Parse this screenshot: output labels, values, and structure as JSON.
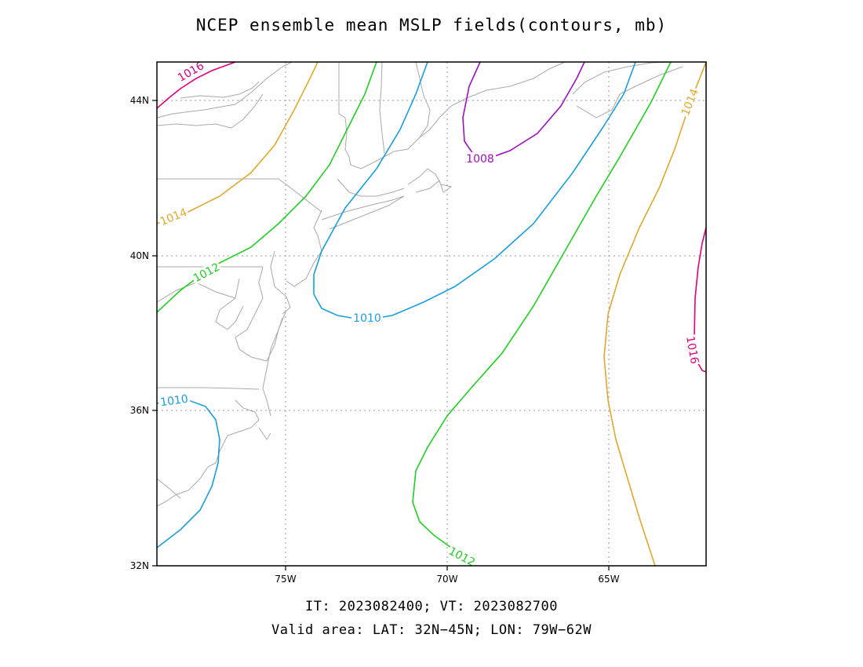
{
  "title": "NCEP ensemble mean MSLP fields(contours, mb)",
  "footer": {
    "line1": "IT: 2023082400; VT: 2023082700",
    "line2": "Valid area: LAT: 32N−45N; LON: 79W−62W"
  },
  "map": {
    "lat_range": [
      32,
      45
    ],
    "lon_range": [
      -79,
      -62
    ],
    "lat_ticks": [
      {
        "value": 32,
        "label": "32N"
      },
      {
        "value": 36,
        "label": "36N"
      },
      {
        "value": 40,
        "label": "40N"
      },
      {
        "value": 44,
        "label": "44N"
      }
    ],
    "lon_ticks": [
      {
        "value": -75,
        "label": "75W"
      },
      {
        "value": -70,
        "label": "70W"
      },
      {
        "value": -65,
        "label": "65W"
      }
    ],
    "gridlines": "dotted",
    "contours": [
      {
        "level": 1016,
        "label": "1016",
        "color": "#e0007e"
      },
      {
        "level": 1014,
        "label": "1014",
        "color": "#e2a82a"
      },
      {
        "level": 1012,
        "label": "1012",
        "color": "#1fd01f"
      },
      {
        "level": 1010,
        "label": "1010",
        "color": "#1a9ee0"
      },
      {
        "level": 1008,
        "label": "1008",
        "color": "#9d10c0"
      }
    ],
    "coastline_color": "#a9a9a9"
  }
}
